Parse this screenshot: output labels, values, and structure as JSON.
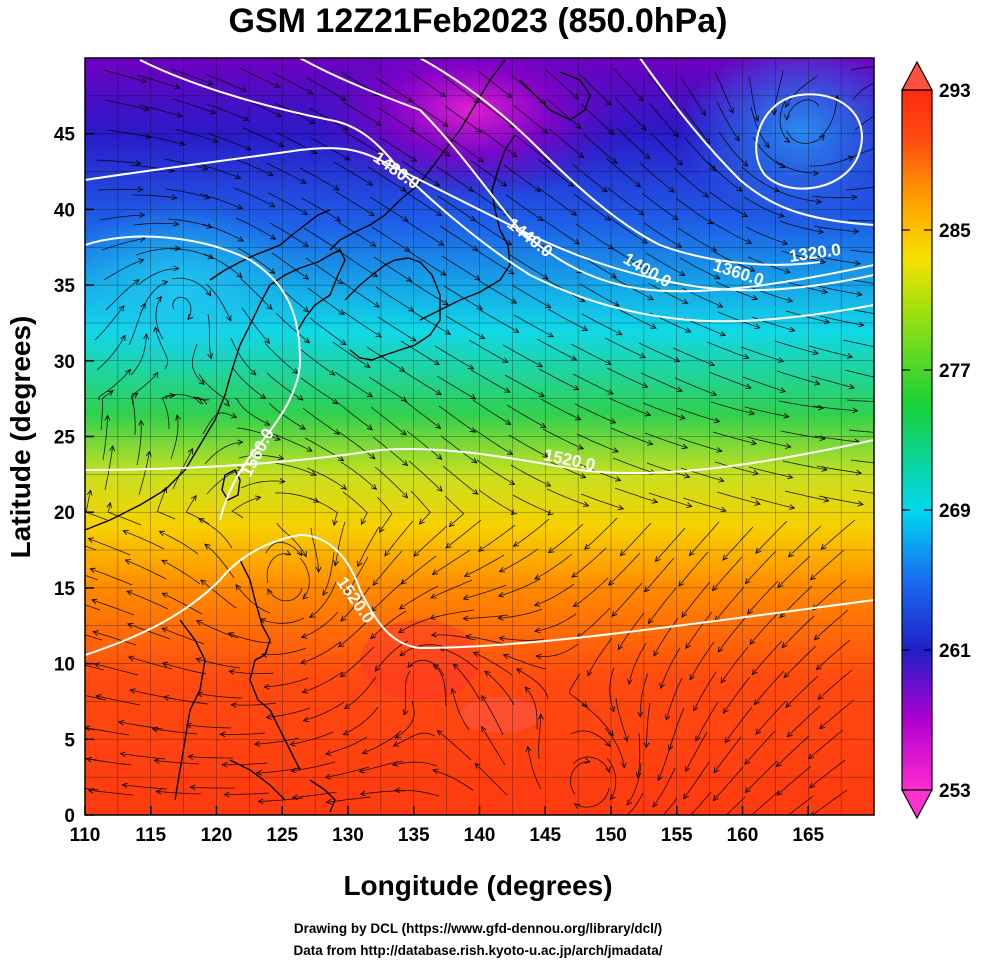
{
  "title": "GSM 12Z21Feb2023 (850.0hPa)",
  "xlabel": "Longitude (degrees)",
  "ylabel": "Latitude  (degrees)",
  "x_ticks": [
    "110",
    "115",
    "120",
    "125",
    "130",
    "135",
    "140",
    "145",
    "150",
    "155",
    "160",
    "165"
  ],
  "y_ticks": [
    "0",
    "5",
    "10",
    "15",
    "20",
    "25",
    "30",
    "35",
    "40",
    "45"
  ],
  "colorbar": {
    "min": 253,
    "max": 293,
    "ticks": [
      "253",
      "261",
      "269",
      "277",
      "285",
      "293"
    ],
    "colors": [
      "#ff2bd0",
      "#b000d0",
      "#2020c8",
      "#1a6cf0",
      "#00d8f0",
      "#18d038",
      "#9be010",
      "#f8e000",
      "#ff9a00",
      "#ff4a10",
      "#ff2a10"
    ]
  },
  "contour_labels": [
    "1480.0",
    "1440.0",
    "1400.0",
    "1360.0",
    "1320.0",
    "1560.0",
    "1520.0",
    "1520.0"
  ],
  "credits": {
    "line1": "Drawing by DCL (https://www.gfd-dennou.org/library/dcl/)",
    "line2": "Data from http://database.rish.kyoto-u.ac.jp/arch/jmadata/"
  },
  "chart_data": {
    "type": "heatmap",
    "title": "GSM 12Z21Feb2023 (850.0hPa)",
    "xlabel": "Longitude (degrees)",
    "ylabel": "Latitude  (degrees)",
    "xlim": [
      110,
      170
    ],
    "ylim": [
      0,
      50
    ],
    "colorbar_range": [
      253,
      293
    ],
    "colorbar_ticks": [
      253,
      261,
      269,
      277,
      285,
      293
    ],
    "contour_values": [
      1320.0,
      1360.0,
      1400.0,
      1440.0,
      1480.0,
      1520.0,
      1560.0
    ],
    "grid": true
  }
}
